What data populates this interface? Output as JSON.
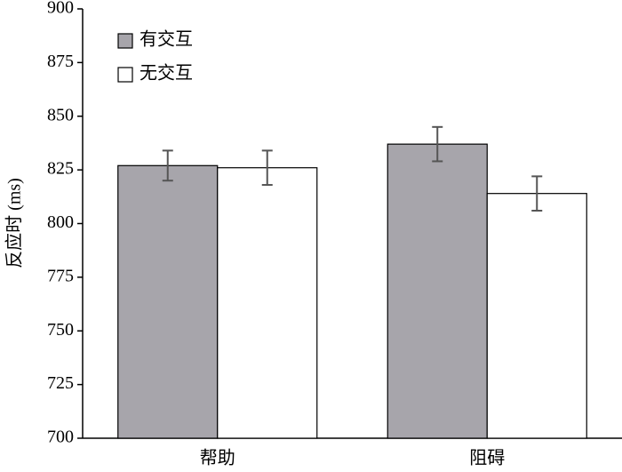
{
  "chart_data": {
    "type": "bar",
    "y_label": "反应时 (ms)",
    "categories": [
      "帮助",
      "阻碍"
    ],
    "series": [
      {
        "name": "有交互",
        "color": "#a7a5ab",
        "values": [
          827,
          837
        ],
        "errors": [
          7,
          8
        ]
      },
      {
        "name": "无交互",
        "color": "#ffffff",
        "values": [
          826,
          814
        ],
        "errors": [
          8,
          8
        ]
      }
    ],
    "ylim": [
      700,
      900
    ],
    "yticks": [
      700,
      725,
      750,
      775,
      800,
      825,
      850,
      875,
      900
    ],
    "grid": false,
    "legend": "upper left"
  }
}
